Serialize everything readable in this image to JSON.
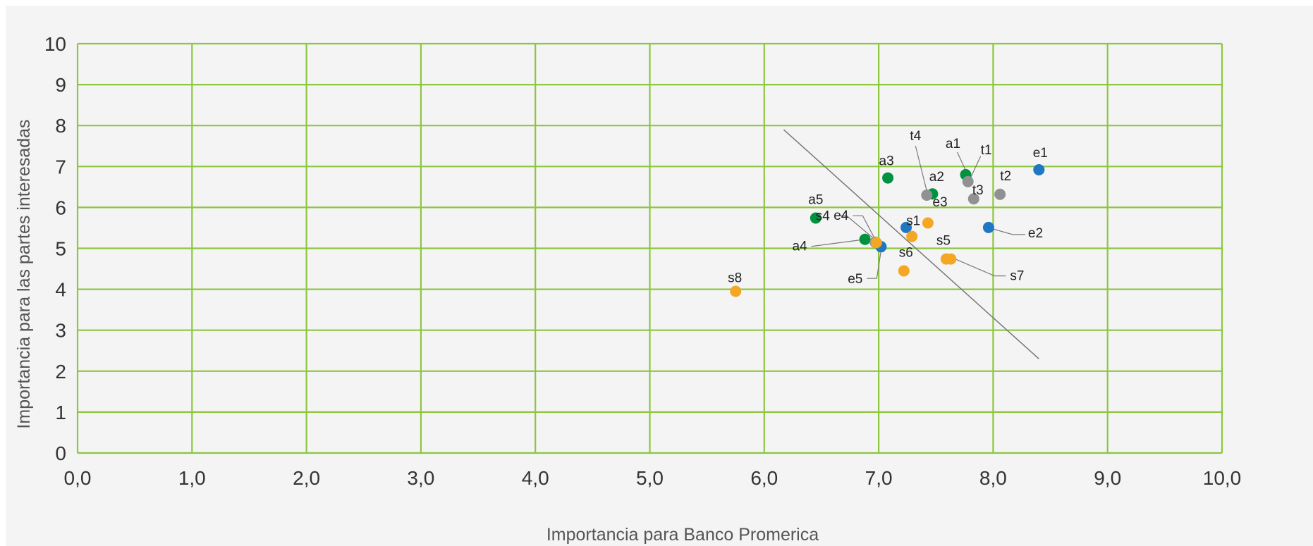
{
  "chart_data": {
    "type": "scatter",
    "title": "",
    "xlabel": "Importancia para Banco Promerica",
    "ylabel": "Importancia para las partes interesadas",
    "xlim": [
      0,
      10
    ],
    "ylim": [
      0,
      10
    ],
    "x_ticks": [
      "0,0",
      "1,0",
      "2,0",
      "3,0",
      "4,0",
      "5,0",
      "6,0",
      "7,0",
      "8,0",
      "9,0",
      "10,0"
    ],
    "y_ticks": [
      "0",
      "1",
      "2",
      "3",
      "4",
      "5",
      "6",
      "7",
      "8",
      "9",
      "10"
    ],
    "grid": true,
    "grid_color": "#8dc63f",
    "background_color": "#f4f4f4",
    "reference_line": {
      "from": [
        6.17,
        7.9
      ],
      "to": [
        8.4,
        2.3
      ],
      "color": "#777777"
    },
    "series": [
      {
        "color": "#00923f",
        "points": [
          {
            "label": "a1",
            "x": 7.76,
            "y": 6.8
          },
          {
            "label": "a2",
            "x": 7.47,
            "y": 6.33
          },
          {
            "label": "a3",
            "x": 7.08,
            "y": 6.72
          },
          {
            "label": "a4",
            "x": 6.88,
            "y": 5.22
          },
          {
            "label": "a5",
            "x": 6.45,
            "y": 5.74
          }
        ]
      },
      {
        "color": "#1f78c1",
        "points": [
          {
            "label": "e1",
            "x": 8.4,
            "y": 6.92
          },
          {
            "label": "e2",
            "x": 7.96,
            "y": 5.51
          },
          {
            "label": "e3",
            "x": 7.24,
            "y": 5.51
          },
          {
            "label": "e4",
            "x": 7.02,
            "y": 5.04
          },
          {
            "label": "e5",
            "x": 7.02,
            "y": 5.04
          }
        ]
      },
      {
        "color": "#8f9193",
        "points": [
          {
            "label": "t1",
            "x": 7.78,
            "y": 6.63
          },
          {
            "label": "t2",
            "x": 8.06,
            "y": 6.32
          },
          {
            "label": "t3",
            "x": 7.83,
            "y": 6.21
          },
          {
            "label": "t4",
            "x": 7.42,
            "y": 6.3
          },
          {
            "label": "",
            "x": 6.97,
            "y": 5.15
          }
        ]
      },
      {
        "color": "#f5a623",
        "points": [
          {
            "label": "s1",
            "x": 7.29,
            "y": 5.29
          },
          {
            "label": "",
            "x": 7.43,
            "y": 5.62
          },
          {
            "label": "s4",
            "x": 6.98,
            "y": 5.14
          },
          {
            "label": "s5",
            "x": 7.59,
            "y": 4.74
          },
          {
            "label": "s6",
            "x": 7.22,
            "y": 4.45
          },
          {
            "label": "s7",
            "x": 7.63,
            "y": 4.74
          },
          {
            "label": "s8",
            "x": 5.75,
            "y": 3.95
          }
        ]
      }
    ]
  }
}
